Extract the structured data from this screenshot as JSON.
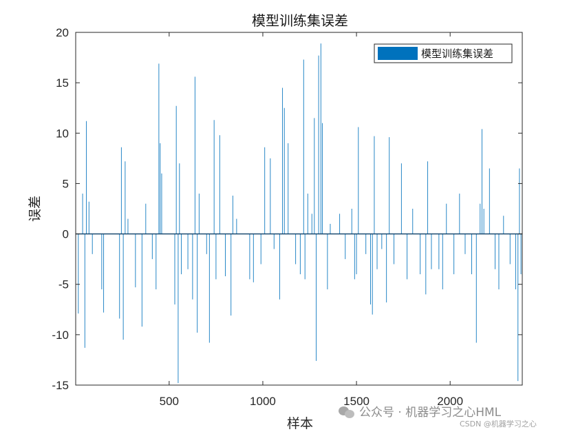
{
  "chart_data": {
    "type": "bar",
    "title": "模型训练集误差",
    "xlabel": "样本",
    "ylabel": "误差",
    "xlim": [
      1,
      2385
    ],
    "ylim": [
      -15,
      20
    ],
    "xticks": [
      500,
      1000,
      1500,
      2000
    ],
    "xtick_labels": [
      "500",
      "1000",
      "1500",
      "2000"
    ],
    "yticks": [
      -15,
      -10,
      -5,
      0,
      5,
      10,
      15,
      20
    ],
    "ytick_labels": [
      "-15",
      "-10",
      "-5",
      "0",
      "5",
      "10",
      "15",
      "20"
    ],
    "grid": false,
    "legend": {
      "position": "top-right",
      "entries": [
        "模型训练集误差"
      ]
    },
    "series": [
      {
        "name": "模型训练集误差",
        "color": "#0072BD",
        "spikes": [
          {
            "x": 15,
            "y": -7.9
          },
          {
            "x": 38,
            "y": 4.0
          },
          {
            "x": 50,
            "y": -11.3
          },
          {
            "x": 58,
            "y": 11.2
          },
          {
            "x": 72,
            "y": 3.2
          },
          {
            "x": 90,
            "y": -2.0
          },
          {
            "x": 140,
            "y": -5.5
          },
          {
            "x": 150,
            "y": -7.8
          },
          {
            "x": 235,
            "y": -8.4
          },
          {
            "x": 245,
            "y": 8.6
          },
          {
            "x": 255,
            "y": -10.5
          },
          {
            "x": 265,
            "y": 7.2
          },
          {
            "x": 280,
            "y": 1.5
          },
          {
            "x": 320,
            "y": -5.3
          },
          {
            "x": 355,
            "y": -9.2
          },
          {
            "x": 375,
            "y": 3.0
          },
          {
            "x": 410,
            "y": -2.5
          },
          {
            "x": 430,
            "y": -5.5
          },
          {
            "x": 445,
            "y": 16.9
          },
          {
            "x": 452,
            "y": 9.0
          },
          {
            "x": 460,
            "y": 6.0
          },
          {
            "x": 530,
            "y": -7.0
          },
          {
            "x": 538,
            "y": 12.7
          },
          {
            "x": 548,
            "y": -14.8
          },
          {
            "x": 555,
            "y": 7.0
          },
          {
            "x": 565,
            "y": -4.0
          },
          {
            "x": 600,
            "y": -3.5
          },
          {
            "x": 625,
            "y": -6.5
          },
          {
            "x": 638,
            "y": 15.6
          },
          {
            "x": 650,
            "y": -9.8
          },
          {
            "x": 660,
            "y": 4.0
          },
          {
            "x": 700,
            "y": -2.0
          },
          {
            "x": 715,
            "y": -10.8
          },
          {
            "x": 740,
            "y": 11.3
          },
          {
            "x": 750,
            "y": -4.5
          },
          {
            "x": 770,
            "y": 9.8
          },
          {
            "x": 800,
            "y": -4.2
          },
          {
            "x": 830,
            "y": -8.1
          },
          {
            "x": 840,
            "y": 3.8
          },
          {
            "x": 860,
            "y": 1.5
          },
          {
            "x": 930,
            "y": -4.5
          },
          {
            "x": 950,
            "y": -4.8
          },
          {
            "x": 990,
            "y": -3.0
          },
          {
            "x": 1010,
            "y": 8.6
          },
          {
            "x": 1040,
            "y": 7.5
          },
          {
            "x": 1060,
            "y": -1.5
          },
          {
            "x": 1090,
            "y": -6.5
          },
          {
            "x": 1105,
            "y": 14.5
          },
          {
            "x": 1115,
            "y": 12.5
          },
          {
            "x": 1135,
            "y": 9.0
          },
          {
            "x": 1175,
            "y": -3.0
          },
          {
            "x": 1200,
            "y": -4.0
          },
          {
            "x": 1218,
            "y": 17.3
          },
          {
            "x": 1225,
            "y": -4.5
          },
          {
            "x": 1240,
            "y": 4.0
          },
          {
            "x": 1262,
            "y": 2.0
          },
          {
            "x": 1275,
            "y": 11.5
          },
          {
            "x": 1285,
            "y": -12.6
          },
          {
            "x": 1298,
            "y": 17.7
          },
          {
            "x": 1310,
            "y": 18.9
          },
          {
            "x": 1318,
            "y": 11.0
          },
          {
            "x": 1345,
            "y": -5.5
          },
          {
            "x": 1360,
            "y": 1.0
          },
          {
            "x": 1410,
            "y": 2.0
          },
          {
            "x": 1440,
            "y": -2.5
          },
          {
            "x": 1475,
            "y": 2.5
          },
          {
            "x": 1490,
            "y": -4.5
          },
          {
            "x": 1500,
            "y": -4.0
          },
          {
            "x": 1510,
            "y": 10.6
          },
          {
            "x": 1550,
            "y": -2.0
          },
          {
            "x": 1575,
            "y": -7.0
          },
          {
            "x": 1585,
            "y": -8.0
          },
          {
            "x": 1595,
            "y": 9.7
          },
          {
            "x": 1610,
            "y": -3.5
          },
          {
            "x": 1635,
            "y": -1.5
          },
          {
            "x": 1660,
            "y": -6.8
          },
          {
            "x": 1675,
            "y": 9.6
          },
          {
            "x": 1700,
            "y": -3.0
          },
          {
            "x": 1740,
            "y": 7.0
          },
          {
            "x": 1770,
            "y": -4.5
          },
          {
            "x": 1800,
            "y": 2.5
          },
          {
            "x": 1840,
            "y": -4.0
          },
          {
            "x": 1870,
            "y": -6.0
          },
          {
            "x": 1880,
            "y": 7.2
          },
          {
            "x": 1900,
            "y": -3.5
          },
          {
            "x": 1940,
            "y": -3.5
          },
          {
            "x": 1960,
            "y": -5.5
          },
          {
            "x": 1980,
            "y": 3.0
          },
          {
            "x": 2020,
            "y": -4.0
          },
          {
            "x": 2050,
            "y": 4.0
          },
          {
            "x": 2080,
            "y": -2.0
          },
          {
            "x": 2115,
            "y": -4.0
          },
          {
            "x": 2140,
            "y": -10.8
          },
          {
            "x": 2160,
            "y": 3.0
          },
          {
            "x": 2170,
            "y": 10.4
          },
          {
            "x": 2180,
            "y": 2.5
          },
          {
            "x": 2210,
            "y": 6.5
          },
          {
            "x": 2240,
            "y": -3.5
          },
          {
            "x": 2260,
            "y": -5.5
          },
          {
            "x": 2285,
            "y": 1.8
          },
          {
            "x": 2320,
            "y": -3.0
          },
          {
            "x": 2350,
            "y": -5.5
          },
          {
            "x": 2362,
            "y": -14.6
          },
          {
            "x": 2370,
            "y": 6.5
          },
          {
            "x": 2378,
            "y": -4.0
          }
        ]
      }
    ]
  },
  "watermark": {
    "main_text": "公众号 · 机器学习之心HML",
    "sub_text": "CSDN @机器学习之心",
    "icon": "wechat-icon"
  }
}
